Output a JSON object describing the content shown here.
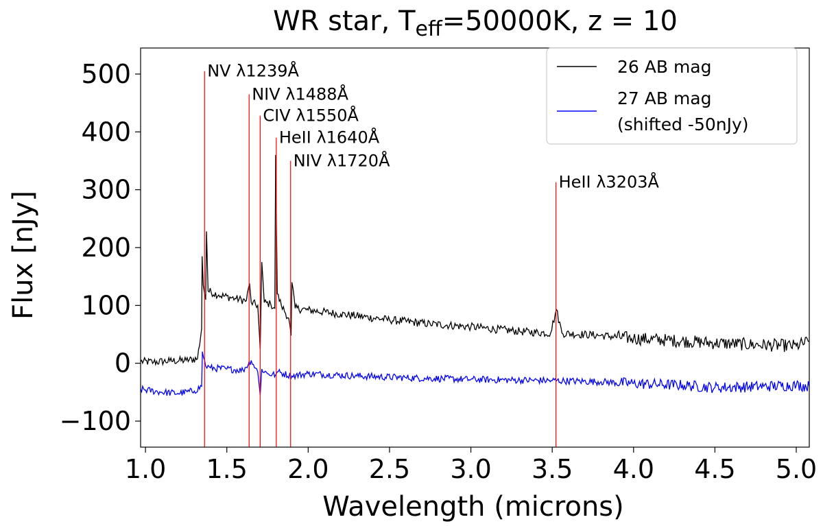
{
  "chart_data": {
    "type": "line",
    "title": {
      "prefix": "WR star, T",
      "subscript": "eff",
      "suffix": "=50000K, z = 10"
    },
    "xlabel": "Wavelength (microns)",
    "ylabel": "Flux [nJy]",
    "xlim": [
      0.97,
      5.08
    ],
    "ylim": [
      -145,
      545
    ],
    "xticks": [
      1.0,
      1.5,
      2.0,
      2.5,
      3.0,
      3.5,
      4.0,
      4.5,
      5.0
    ],
    "xtick_labels": [
      "1.0",
      "1.5",
      "2.0",
      "2.5",
      "3.0",
      "3.5",
      "4.0",
      "4.5",
      "5.0"
    ],
    "yticks": [
      -100,
      0,
      100,
      200,
      300,
      400,
      500
    ],
    "ytick_labels": [
      "−100",
      "0",
      "100",
      "200",
      "300",
      "400",
      "500"
    ],
    "grid": false,
    "legend": {
      "position": "top-right",
      "entries": [
        {
          "label_lines": [
            "26 AB mag"
          ],
          "color": "#000000"
        },
        {
          "label_lines": [
            "27 AB mag",
            "(shifted -50nJy)"
          ],
          "color": "#0000ff"
        }
      ]
    },
    "series": [
      {
        "name": "26 AB mag",
        "color": "#000000",
        "points": [
          [
            0.97,
            3
          ],
          [
            1.05,
            2
          ],
          [
            1.15,
            4
          ],
          [
            1.25,
            5
          ],
          [
            1.32,
            8
          ],
          [
            1.345,
            60
          ],
          [
            1.348,
            185
          ],
          [
            1.355,
            135
          ],
          [
            1.37,
            110
          ],
          [
            1.375,
            228
          ],
          [
            1.385,
            125
          ],
          [
            1.45,
            118
          ],
          [
            1.55,
            112
          ],
          [
            1.62,
            108
          ],
          [
            1.64,
            138
          ],
          [
            1.65,
            105
          ],
          [
            1.69,
            100
          ],
          [
            1.705,
            25
          ],
          [
            1.715,
            175
          ],
          [
            1.73,
            105
          ],
          [
            1.77,
            102
          ],
          [
            1.795,
            95
          ],
          [
            1.8,
            360
          ],
          [
            1.81,
            120
          ],
          [
            1.835,
            100
          ],
          [
            1.88,
            78
          ],
          [
            1.895,
            48
          ],
          [
            1.9,
            140
          ],
          [
            1.92,
            95
          ],
          [
            2.0,
            92
          ],
          [
            2.2,
            85
          ],
          [
            2.5,
            75
          ],
          [
            2.75,
            68
          ],
          [
            3.0,
            63
          ],
          [
            3.3,
            55
          ],
          [
            3.49,
            52
          ],
          [
            3.525,
            93
          ],
          [
            3.56,
            52
          ],
          [
            3.8,
            48
          ],
          [
            4.0,
            43
          ],
          [
            4.2,
            40
          ],
          [
            4.5,
            35
          ],
          [
            4.75,
            32
          ],
          [
            5.0,
            30
          ],
          [
            5.08,
            38
          ]
        ]
      },
      {
        "name": "27 AB mag (shifted -50nJy)",
        "color": "#0000ff",
        "points": [
          [
            0.97,
            -45
          ],
          [
            1.1,
            -50
          ],
          [
            1.2,
            -52
          ],
          [
            1.3,
            -48
          ],
          [
            1.345,
            -40
          ],
          [
            1.35,
            20
          ],
          [
            1.37,
            -5
          ],
          [
            1.4,
            -8
          ],
          [
            1.5,
            -10
          ],
          [
            1.6,
            -12
          ],
          [
            1.65,
            5
          ],
          [
            1.69,
            -15
          ],
          [
            1.705,
            -55
          ],
          [
            1.715,
            -10
          ],
          [
            1.75,
            -18
          ],
          [
            1.8,
            -20
          ],
          [
            1.81,
            -15
          ],
          [
            1.9,
            -22
          ],
          [
            2.0,
            -18
          ],
          [
            2.3,
            -22
          ],
          [
            2.6,
            -25
          ],
          [
            3.0,
            -28
          ],
          [
            3.5,
            -30
          ],
          [
            3.8,
            -32
          ],
          [
            4.0,
            -35
          ],
          [
            4.3,
            -38
          ],
          [
            4.5,
            -42
          ],
          [
            4.8,
            -40
          ],
          [
            5.0,
            -38
          ],
          [
            5.08,
            -40
          ]
        ]
      }
    ],
    "emission_lines": [
      {
        "label": "NV λ1239Å",
        "x": 1.363,
        "top": 505
      },
      {
        "label": "NIV λ1488Å",
        "x": 1.637,
        "top": 465
      },
      {
        "label": "CIV λ1550Å",
        "x": 1.705,
        "top": 428
      },
      {
        "label": "HeII λ1640Å",
        "x": 1.804,
        "top": 390
      },
      {
        "label": "NIV λ1720Å",
        "x": 1.892,
        "top": 350
      },
      {
        "label": "HeII λ3203Å",
        "x": 3.523,
        "top": 313
      }
    ],
    "line_color": "#ff0000"
  }
}
